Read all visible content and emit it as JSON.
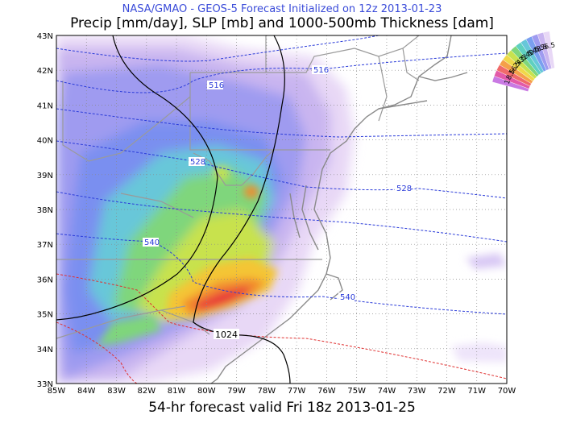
{
  "header": {
    "source": "NASA/GMAO - GEOS-5 Forecast Initialized on 12z 2013-01-23",
    "title": "Precip [mm/day], SLP [mb] and 1000-500mb Thickness [dam]"
  },
  "footer": {
    "valid": "54-hr forecast valid Fri 18z 2013-01-25"
  },
  "map": {
    "lon_range": [
      -85,
      -70
    ],
    "lat_range": [
      33,
      43
    ],
    "lon_labels": [
      "85W",
      "84W",
      "83W",
      "82W",
      "81W",
      "80W",
      "79W",
      "78W",
      "77W",
      "76W",
      "75W",
      "74W",
      "73W",
      "72W",
      "71W",
      "70W"
    ],
    "lat_labels": [
      "33N",
      "34N",
      "35N",
      "36N",
      "37N",
      "38N",
      "39N",
      "40N",
      "41N",
      "42N",
      "43N"
    ],
    "grid": "dotted"
  },
  "contours": {
    "thickness_labels": [
      "516",
      "516",
      "528",
      "528",
      "540",
      "540"
    ],
    "slp_label": "1024",
    "colors": {
      "thickness_cold": "#2a3bd9",
      "thickness_warm": "#e03030",
      "slp": "#000000"
    }
  },
  "colorbar": {
    "labels": [
      "56.5",
      "48.5",
      "40.5",
      "32.5",
      "24.5",
      "16.5",
      "8.5",
      "1"
    ]
  }
}
